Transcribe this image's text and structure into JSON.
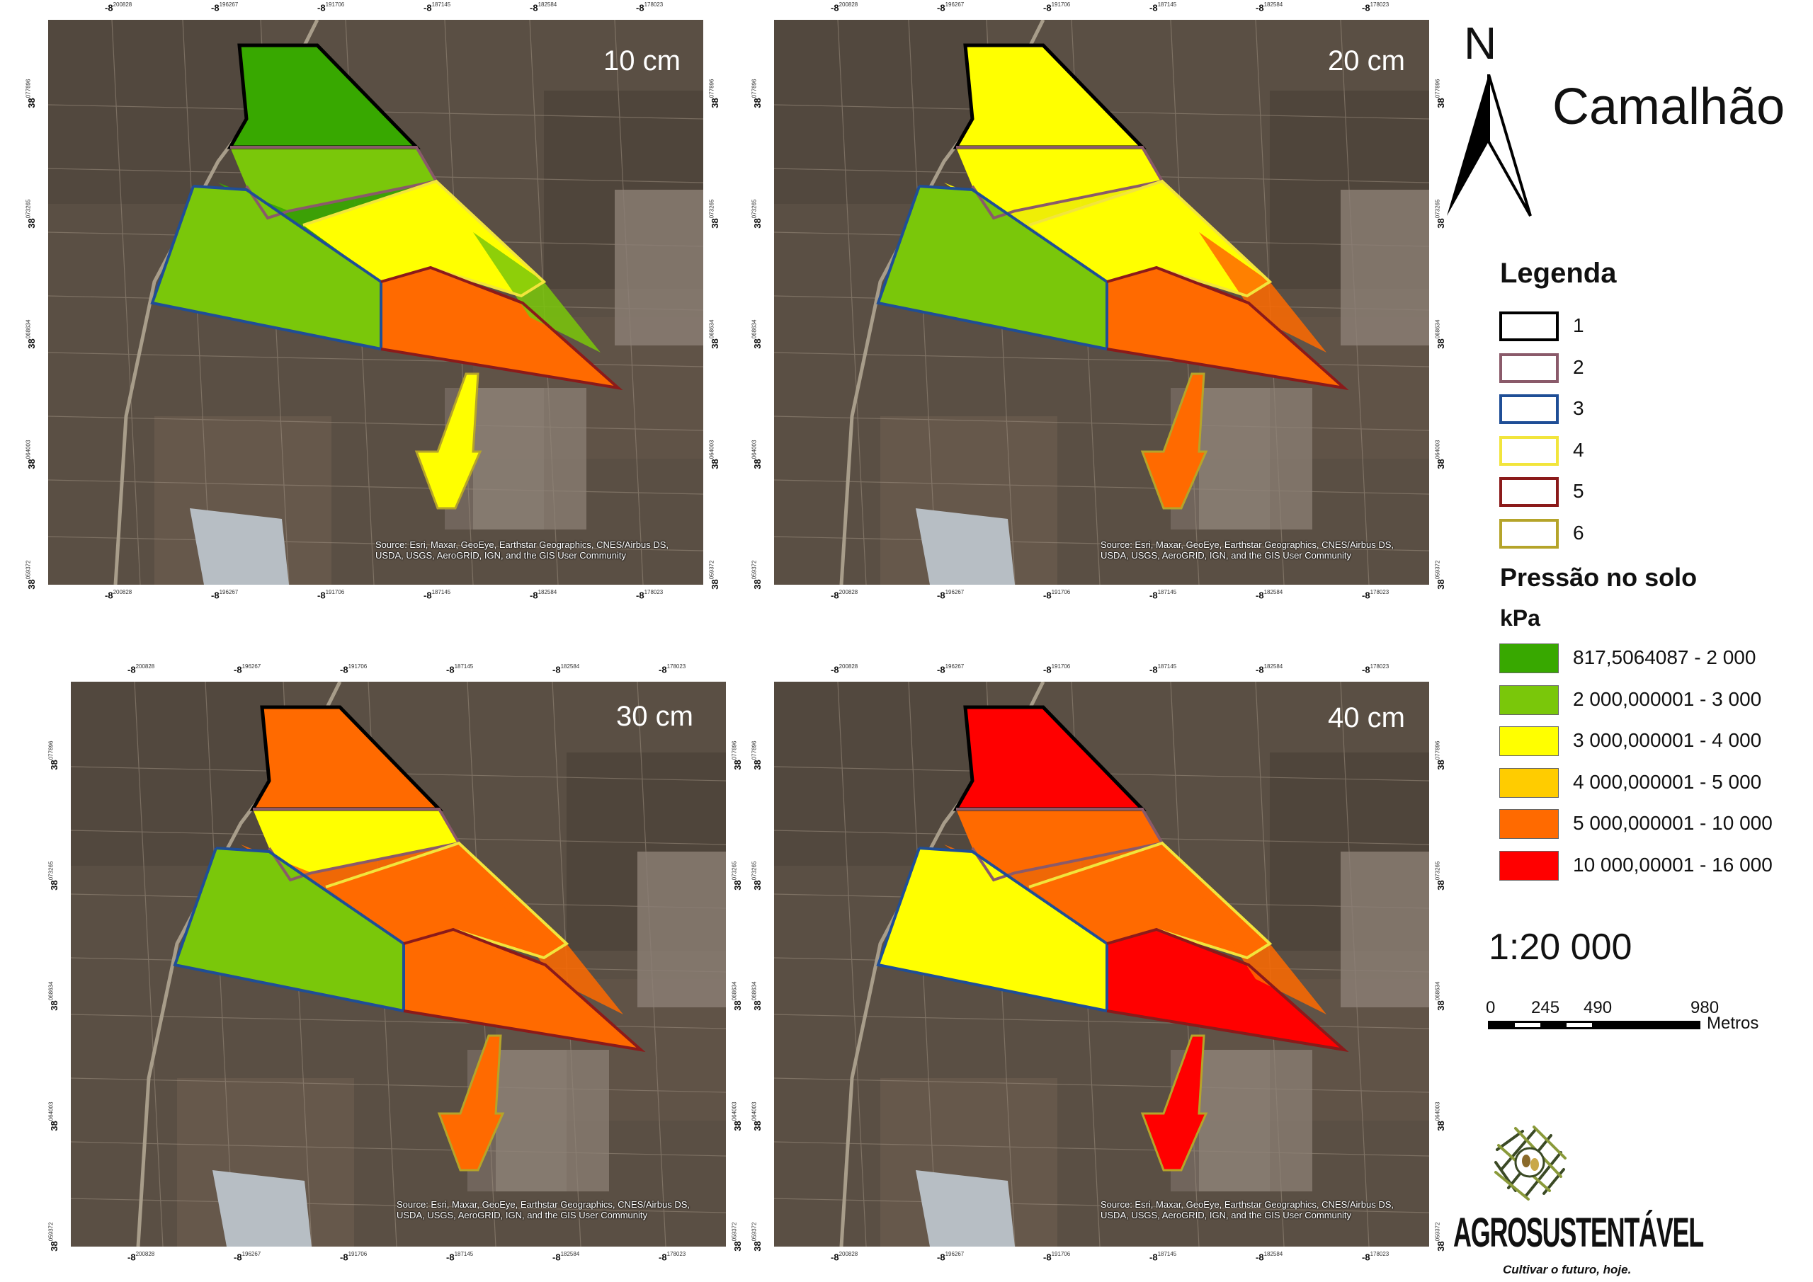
{
  "title": "Camalhão",
  "north_arrow": {
    "letter": "N",
    "icon": "north-arrow-icon"
  },
  "panels": [
    {
      "id": "p10",
      "depth": "10 cm",
      "fills": [
        "dgreen",
        "lgreen",
        "dgreen",
        "lgreen",
        "yellow",
        "orange",
        "lgreen",
        "yellow"
      ]
    },
    {
      "id": "p20",
      "depth": "20 cm",
      "fills": [
        "yellow",
        "yellow",
        "yellow",
        "lgreen",
        "yellow",
        "orange",
        "orange",
        "orange"
      ]
    },
    {
      "id": "p30",
      "depth": "30 cm",
      "fills": [
        "orange",
        "yellow",
        "orange",
        "lgreen",
        "orange",
        "orange",
        "orange",
        "orange"
      ]
    },
    {
      "id": "p40",
      "depth": "40 cm",
      "fills": [
        "red",
        "orange",
        "orange",
        "yellow",
        "orange",
        "red",
        "orange",
        "red"
      ]
    }
  ],
  "coords": {
    "x_ticks": [
      {
        "major": "-8",
        "minor": "200828"
      },
      {
        "major": "-8",
        "minor": "196267"
      },
      {
        "major": "-8",
        "minor": "191706"
      },
      {
        "major": "-8",
        "minor": "187145"
      },
      {
        "major": "-8",
        "minor": "182584"
      },
      {
        "major": "-8",
        "minor": "178023"
      }
    ],
    "y_ticks": [
      {
        "major": "38",
        "minor": "077896"
      },
      {
        "major": "38",
        "minor": "073265"
      },
      {
        "major": "38",
        "minor": "068634"
      },
      {
        "major": "38",
        "minor": "064003"
      },
      {
        "major": "38",
        "minor": "059372"
      }
    ]
  },
  "attribution": "Source: Esri, Maxar, GeoEye, Earthstar Geographics, CNES/Airbus DS, USDA, USGS, AeroGRID, IGN, and the GIS User Community",
  "legend": {
    "title": "Legenda",
    "zones": [
      {
        "label": "1",
        "color": "#000000"
      },
      {
        "label": "2",
        "color": "#8a5a6a"
      },
      {
        "label": "3",
        "color": "#1f4e96"
      },
      {
        "label": "4",
        "color": "#f2e53c"
      },
      {
        "label": "5",
        "color": "#8b1a1a"
      },
      {
        "label": "6",
        "color": "#b5a42a"
      }
    ],
    "pressure_title": "Pressão no solo",
    "unit": "kPa",
    "classes": [
      {
        "label": "817,5064087 - 2 000",
        "color": "#38a800"
      },
      {
        "label": "2 000,000001 - 3 000",
        "color": "#7ac70a"
      },
      {
        "label": "3 000,000001 - 4 000",
        "color": "#ffff00"
      },
      {
        "label": "4 000,000001 - 5 000",
        "color": "#ffcc00"
      },
      {
        "label": "5 000,000001 - 10 000",
        "color": "#ff6a00"
      },
      {
        "label": "10 000,00001 - 16 000",
        "color": "#ff0000"
      }
    ]
  },
  "scale": {
    "text": "1:20 000",
    "ticks": [
      "0",
      "245",
      "490",
      "980"
    ],
    "unit": "Metros"
  },
  "logo": {
    "icon": "agrosustentavel-logo-icon",
    "brand": "AGROSUSTENTÁVEL",
    "tagline": "Cultivar o futuro, hoje."
  }
}
